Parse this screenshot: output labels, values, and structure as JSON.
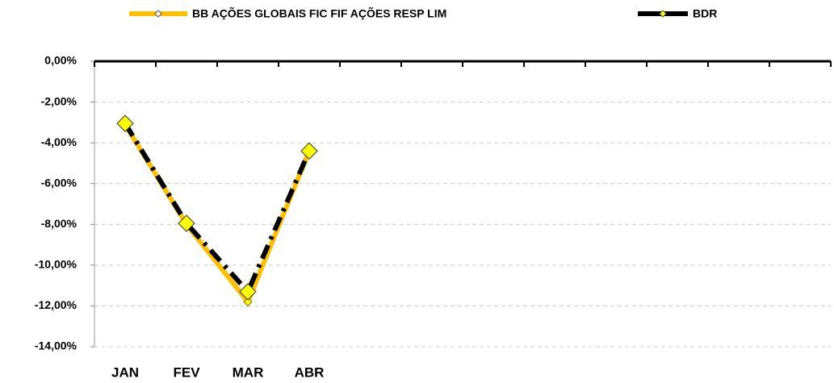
{
  "chart_data": {
    "type": "line",
    "categories": [
      "JAN",
      "FEV",
      "MAR",
      "ABR",
      null,
      null,
      null,
      null,
      null,
      null,
      null,
      null
    ],
    "series": [
      {
        "name": "BB AÇÕES GLOBAIS FIC FIF AÇÕES RESP LIM",
        "color": "#ffc000",
        "values": [
          -3.1,
          -8.0,
          -11.8,
          -4.4,
          null,
          null,
          null,
          null,
          null,
          null,
          null,
          null
        ]
      },
      {
        "name": "BDR",
        "color": "#000000",
        "values": [
          -3.05,
          -7.95,
          -11.3,
          -4.4,
          null,
          null,
          null,
          null,
          null,
          null,
          null,
          null
        ]
      }
    ],
    "ylim": [
      -14,
      0
    ],
    "yticks": [
      {
        "value": 0,
        "label": "0,00%"
      },
      {
        "value": -2,
        "label": "-2,00%"
      },
      {
        "value": -4,
        "label": "-4,00%"
      },
      {
        "value": -6,
        "label": "-6,00%"
      },
      {
        "value": -8,
        "label": "-8,00%"
      },
      {
        "value": -10,
        "label": "-10,00%"
      },
      {
        "value": -12,
        "label": "-12,00%"
      },
      {
        "value": -14,
        "label": "-14,00%"
      }
    ],
    "grid": true,
    "legend": "top"
  }
}
